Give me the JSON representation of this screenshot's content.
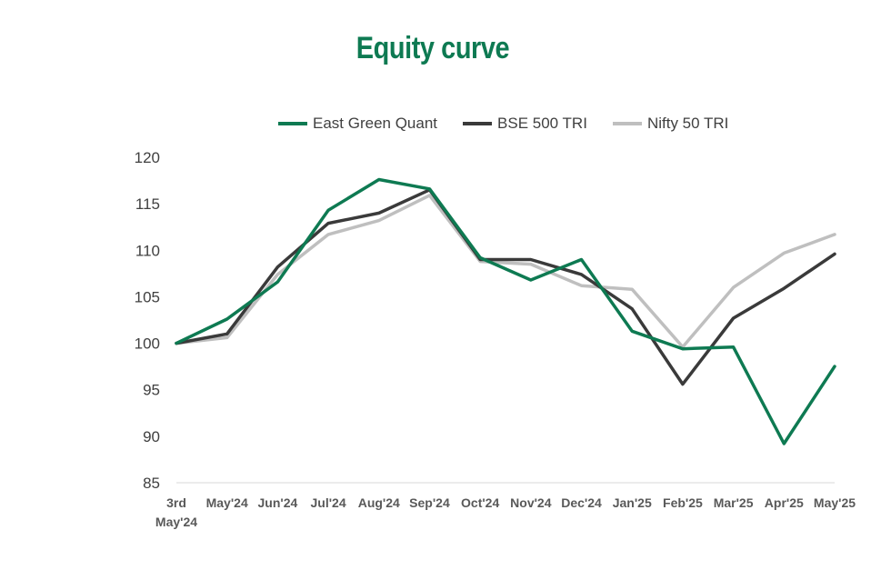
{
  "chart_data": {
    "type": "line",
    "title": "Equity curve",
    "title_color": "#0E7A52",
    "categories": [
      [
        "3rd",
        "May'24"
      ],
      [
        "May'24"
      ],
      [
        "Jun'24"
      ],
      [
        "Jul'24"
      ],
      [
        "Aug'24"
      ],
      [
        "Sep'24"
      ],
      [
        "Oct'24"
      ],
      [
        "Nov'24"
      ],
      [
        "Dec'24"
      ],
      [
        "Jan'25"
      ],
      [
        "Feb'25"
      ],
      [
        "Mar'25"
      ],
      [
        "Apr'25"
      ],
      [
        "May'25"
      ]
    ],
    "series": [
      {
        "name": "East Green Quant",
        "color": "#0E7A52",
        "values": [
          100.0,
          102.6,
          106.6,
          114.3,
          117.6,
          116.6,
          109.2,
          106.8,
          109.0,
          101.3,
          99.4,
          99.6,
          89.2,
          97.5
        ]
      },
      {
        "name": "BSE 500 TRI",
        "color": "#3A3A3A",
        "values": [
          100.0,
          101.0,
          108.2,
          112.9,
          114.0,
          116.5,
          109.0,
          109.0,
          107.4,
          103.7,
          95.6,
          102.7,
          105.9,
          109.6
        ]
      },
      {
        "name": "Nifty 50 TRI",
        "color": "#BFBFBF",
        "values": [
          100.0,
          100.6,
          107.4,
          111.7,
          113.2,
          115.9,
          108.8,
          108.5,
          106.2,
          105.8,
          99.6,
          106.0,
          109.7,
          111.7
        ]
      }
    ],
    "ylim": [
      85,
      120
    ],
    "yticks": [
      85,
      90,
      95,
      100,
      105,
      110,
      115,
      120
    ],
    "xlabel": "",
    "ylabel": "",
    "grid": false,
    "legend_position": "top"
  }
}
